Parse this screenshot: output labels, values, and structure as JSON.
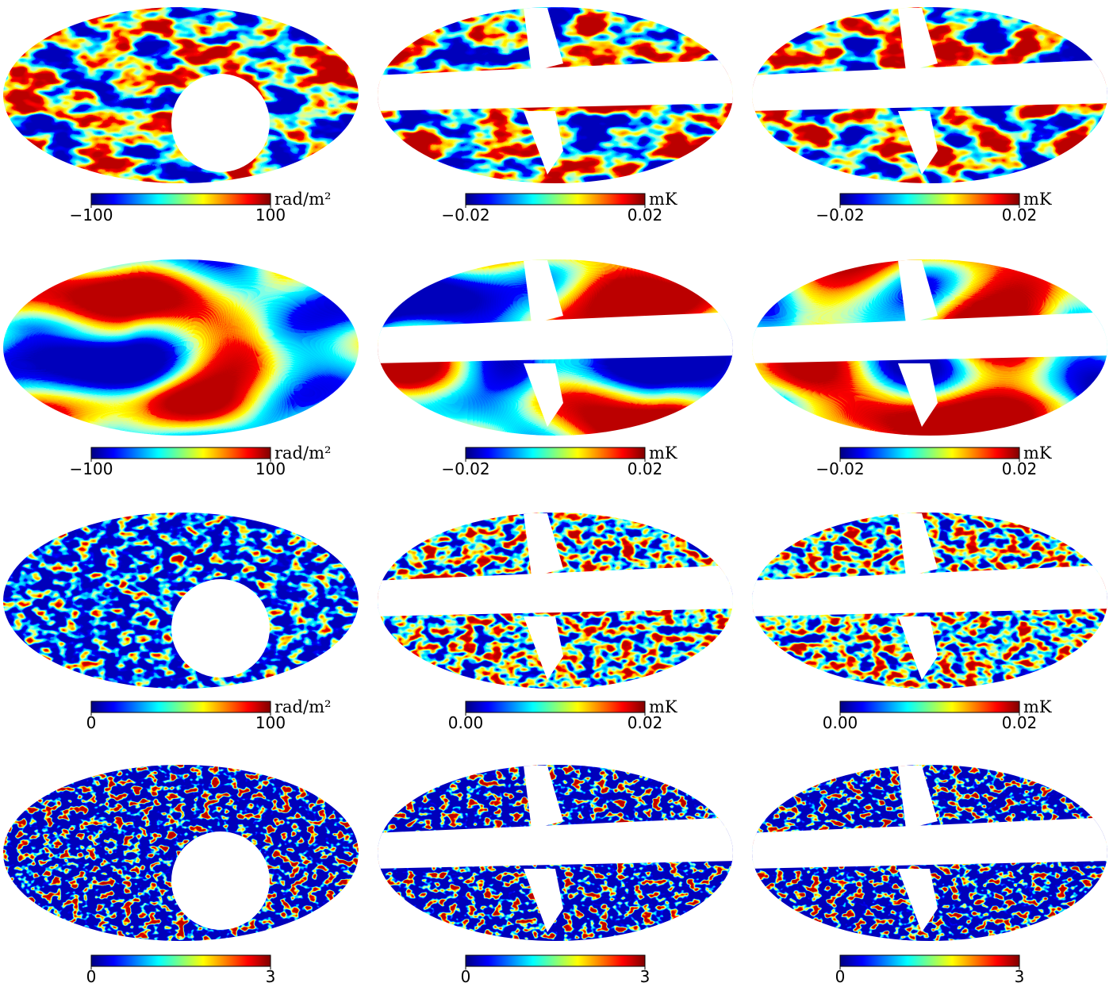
{
  "panels": [
    {
      "colorbar": {
        "range": [
          -100,
          100
        ],
        "ticks": [
          {
            "value": -100,
            "label": "−100"
          },
          100
        ],
        "unit": "rad/m²"
      }
    },
    {
      "colorbar": {
        "range": [
          -0.02,
          0.02
        ],
        "ticks": [
          {
            "value": -0.02,
            "label": "−0.02"
          },
          0.02
        ],
        "unit": "mK"
      }
    },
    {
      "colorbar": {
        "range": [
          -0.02,
          0.02
        ],
        "ticks": [
          {
            "value": -0.02,
            "label": "−0.02"
          },
          0.02
        ],
        "unit": "mK"
      }
    },
    {
      "colorbar": {
        "range": [
          -100,
          100
        ],
        "ticks": [
          {
            "value": -100,
            "label": "−100"
          },
          100
        ],
        "unit": "rad/m²"
      }
    },
    {
      "colorbar": {
        "range": [
          -0.02,
          0.02
        ],
        "ticks": [
          {
            "value": -0.02,
            "label": "−0.02"
          },
          0.02
        ],
        "unit": "mK"
      }
    },
    {
      "colorbar": {
        "range": [
          -0.02,
          0.02
        ],
        "ticks": [
          {
            "value": -0.02,
            "label": "−0.02"
          },
          0.02
        ],
        "unit": "mK"
      }
    },
    {
      "colorbar": {
        "range": [
          0,
          100
        ],
        "ticks": [
          0,
          100
        ],
        "unit": "rad/m²"
      }
    },
    {
      "colorbar": {
        "range": [
          0,
          0.02
        ],
        "ticks": [
          {
            "value": 0,
            "label": "0.00"
          },
          0.02
        ],
        "unit": "mK"
      }
    },
    {
      "colorbar": {
        "range": [
          0,
          0.02
        ],
        "ticks": [
          {
            "value": 0,
            "label": "0.00"
          },
          0.02
        ],
        "unit": "mK"
      }
    },
    {
      "colorbar": {
        "range": [
          0,
          3
        ],
        "ticks": [
          0,
          3
        ]
      }
    },
    {
      "colorbar": {
        "range": [
          0,
          3
        ],
        "ticks": [
          0,
          3
        ]
      }
    },
    {
      "colorbar": {
        "range": [
          0,
          3
        ],
        "ticks": [
          0,
          3
        ]
      }
    }
  ]
}
